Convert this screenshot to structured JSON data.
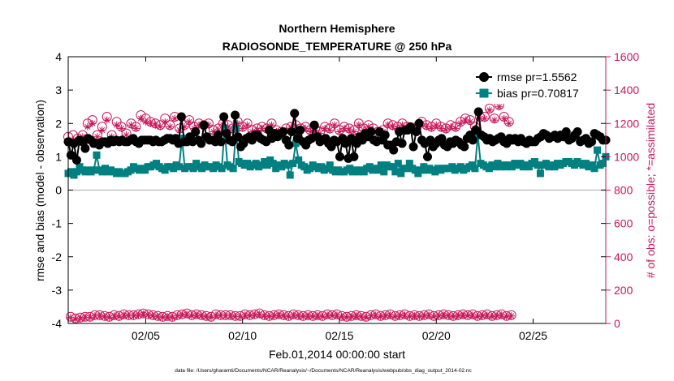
{
  "chart_data": {
    "type": "line",
    "title": "Northern Hemisphere",
    "subtitle": "RADIOSONDE_TEMPERATURE @ 250 hPa",
    "xlabel": "Feb.01,2014 00:00:00 start",
    "ylabel": "rmse and bias (model - observation)",
    "y2label": "# of obs: o=possible; *=assimilated",
    "footnote": "data file: /Users/gharamti/Documents/NCAR/Reanalysis/~/Documents/NCAR/Reanalysis/webpub/obs_diag_output_2014-02.nc",
    "x_unit": "day of February 2014 (6-hourly)",
    "xlim": [
      1.0,
      28.75
    ],
    "ylim": [
      -4,
      4
    ],
    "y2lim": [
      0,
      1600
    ],
    "x_ticks": [
      5,
      10,
      15,
      20,
      25
    ],
    "x_tick_labels": [
      "02/05",
      "02/10",
      "02/15",
      "02/20",
      "02/25"
    ],
    "y_ticks": [
      -4,
      -3,
      -2,
      -1,
      0,
      1,
      2,
      3,
      4
    ],
    "y_tick_labels": [
      "-4",
      "-3",
      "-2",
      "-1",
      "0",
      "1",
      "2",
      "3",
      "4"
    ],
    "y2_ticks": [
      0,
      200,
      400,
      600,
      800,
      1000,
      1200,
      1400,
      1600
    ],
    "y2_tick_labels": [
      "0",
      "200",
      "400",
      "600",
      "800",
      "1000",
      "1200",
      "1400",
      "1600"
    ],
    "zero_line": 0,
    "grid": false,
    "legend_position": "top-right",
    "colors": {
      "rmse": "#000000",
      "bias": "#008080",
      "obs": "#c8185a",
      "zero": "#b4b4b4"
    },
    "series": [
      {
        "name": "rmse pr=1.5562",
        "axis": "left",
        "marker": "circle",
        "color": "#000000",
        "values": [
          1.45,
          1.05,
          1.4,
          0.9,
          1.5,
          1.45,
          1.25,
          1.55,
          1.5,
          1.4,
          1.4,
          1.35,
          1.45,
          1.45,
          1.4,
          1.5,
          1.45,
          1.5,
          1.45,
          1.5,
          1.45,
          1.45,
          1.5,
          1.55,
          1.45,
          1.4,
          1.5,
          1.5,
          1.5,
          1.5,
          1.45,
          1.5,
          1.45,
          1.45,
          1.5,
          1.55,
          1.55,
          1.5,
          1.55,
          1.4,
          2.2,
          1.45,
          1.45,
          1.6,
          1.45,
          1.75,
          1.5,
          1.4,
          1.95,
          1.6,
          1.5,
          1.5,
          1.45,
          1.65,
          1.45,
          2.2,
          1.7,
          1.5,
          1.45,
          2.25,
          1.6,
          1.3,
          1.4,
          1.55,
          1.6,
          1.5,
          1.65,
          1.65,
          1.55,
          1.5,
          1.45,
          1.8,
          1.55,
          1.7,
          1.6,
          1.7,
          1.75,
          1.5,
          1.35,
          1.75,
          2.3,
          1.55,
          1.8,
          1.45,
          1.35,
          1.5,
          1.55,
          1.95,
          1.6,
          1.45,
          1.5,
          1.55,
          1.4,
          1.3,
          1.5,
          1.45,
          1.0,
          1.55,
          1.4,
          0.95,
          1.55,
          1.0,
          1.4,
          1.6,
          1.5,
          1.7,
          1.6,
          1.75,
          1.5,
          1.45,
          1.75,
          1.5,
          1.65,
          1.35,
          1.35,
          1.2,
          1.45,
          1.75,
          1.4,
          1.8,
          1.8,
          1.9,
          1.3,
          1.75,
          2.0,
          1.5,
          1.4,
          1.0,
          1.5,
          1.3,
          1.4,
          1.5,
          1.55,
          1.35,
          1.3,
          1.45,
          1.4,
          1.5,
          1.45,
          1.35,
          1.3,
          1.55,
          1.65,
          1.5,
          1.8,
          2.35,
          1.65,
          1.6,
          1.5,
          1.55,
          1.45,
          1.5,
          1.55,
          1.6,
          1.45,
          1.4,
          1.55,
          1.5,
          1.55,
          1.45,
          1.55,
          1.45,
          1.4,
          1.5,
          1.45,
          1.45,
          1.55,
          1.6,
          1.7,
          1.65,
          1.55,
          1.6,
          1.65,
          1.55,
          1.65,
          1.6,
          1.75,
          1.5,
          1.55,
          1.65,
          1.75,
          1.45,
          1.5,
          1.55,
          1.4,
          1.45,
          1.7,
          1.65,
          1.6,
          1.5,
          1.5
        ]
      },
      {
        "name": "bias pr=0.70817",
        "axis": "left",
        "marker": "square",
        "color": "#008080",
        "values": [
          0.5,
          0.55,
          0.45,
          0.55,
          0.7,
          0.6,
          0.55,
          0.6,
          0.55,
          0.6,
          1.05,
          0.6,
          0.55,
          0.65,
          0.55,
          0.6,
          0.55,
          0.5,
          0.55,
          0.5,
          0.5,
          0.55,
          0.6,
          0.7,
          0.65,
          0.6,
          0.65,
          0.6,
          0.7,
          0.7,
          0.75,
          0.8,
          0.7,
          0.65,
          0.6,
          0.7,
          0.7,
          0.65,
          0.75,
          0.7,
          1.55,
          0.65,
          0.7,
          0.7,
          0.65,
          0.8,
          0.7,
          0.65,
          0.75,
          0.7,
          0.7,
          0.65,
          0.75,
          0.7,
          0.65,
          1.85,
          0.75,
          0.7,
          0.65,
          1.85,
          0.85,
          0.8,
          0.75,
          0.8,
          0.7,
          0.75,
          0.8,
          0.7,
          0.75,
          0.85,
          0.75,
          0.9,
          0.8,
          0.65,
          0.75,
          0.7,
          0.8,
          0.75,
          0.45,
          0.8,
          1.4,
          0.9,
          0.75,
          0.7,
          0.6,
          0.65,
          0.75,
          0.7,
          0.65,
          0.7,
          0.6,
          0.65,
          0.75,
          0.6,
          0.55,
          0.6,
          0.55,
          0.55,
          0.6,
          0.65,
          0.55,
          0.6,
          0.55,
          0.6,
          0.55,
          0.65,
          0.7,
          0.6,
          0.65,
          0.6,
          0.75,
          0.55,
          0.75,
          0.7,
          0.7,
          0.55,
          0.8,
          0.5,
          0.65,
          0.65,
          0.8,
          0.65,
          0.6,
          0.5,
          0.6,
          0.7,
          0.6,
          0.65,
          0.6,
          0.55,
          0.65,
          0.6,
          0.65,
          0.65,
          0.65,
          0.7,
          0.6,
          0.65,
          0.7,
          0.6,
          0.65,
          0.7,
          0.75,
          0.65,
          1.65,
          0.8,
          0.75,
          0.7,
          0.65,
          0.75,
          0.7,
          0.8,
          0.7,
          0.75,
          0.7,
          0.75,
          0.7,
          0.8,
          0.75,
          0.8,
          0.7,
          0.75,
          0.7,
          0.8,
          0.85,
          0.75,
          0.5,
          0.75,
          0.8,
          0.7,
          0.75,
          0.7,
          0.8,
          0.75,
          0.8,
          0.85,
          0.85,
          0.8,
          0.75,
          0.85,
          0.8,
          0.75,
          0.8,
          0.7,
          0.75,
          0.65,
          1.2,
          0.75,
          0.8,
          1.0
        ]
      },
      {
        "name": "possible",
        "axis": "right",
        "marker": "circle-open",
        "color": "#c8185a",
        "values": [
          1120,
          40,
          1130,
          30,
          1110,
          35,
          1130,
          40,
          1200,
          40,
          1220,
          50,
          1130,
          50,
          1180,
          45,
          1240,
          40,
          1130,
          50,
          1210,
          45,
          1180,
          55,
          1140,
          50,
          1200,
          50,
          1180,
          55,
          1250,
          60,
          1230,
          55,
          1210,
          50,
          1200,
          45,
          1190,
          40,
          1230,
          45,
          1190,
          40,
          1240,
          50,
          1170,
          55,
          1190,
          60,
          1220,
          50,
          1180,
          55,
          1200,
          50,
          1190,
          45,
          1200,
          40,
          1160,
          55,
          1170,
          50,
          1200,
          50,
          1190,
          50,
          1170,
          45,
          1210,
          45,
          1180,
          55,
          1200,
          50,
          1160,
          55,
          1170,
          60,
          1180,
          50,
          1170,
          45,
          1200,
          50,
          1160,
          55,
          1150,
          50,
          1170,
          45,
          1180,
          55,
          1190,
          50,
          1170,
          45,
          1180,
          50,
          1160,
          45,
          1170,
          50,
          1150,
          45,
          1180,
          55,
          1170,
          50,
          1200,
          55,
          1160,
          45,
          1180,
          40,
          1170,
          45,
          1160,
          50,
          1200,
          45,
          1170,
          40,
          1190,
          50,
          1170,
          55,
          1150,
          45,
          1160,
          50,
          1200,
          55,
          1190,
          45,
          1180,
          50,
          1200,
          55,
          1180,
          45,
          1170,
          50,
          1180,
          45,
          1210,
          50,
          1190,
          55,
          1180,
          45,
          1200,
          50,
          1180,
          55,
          1170,
          50,
          1190,
          45,
          1180,
          50,
          1210,
          55,
          1230,
          50,
          1220,
          55,
          1180,
          45,
          1240,
          50,
          1240,
          55,
          1290,
          45,
          1230,
          50,
          1310,
          55,
          1240,
          45,
          1210,
          50
        ]
      },
      {
        "name": "assimilated",
        "axis": "right",
        "marker": "asterisk",
        "color": "#c8185a",
        "values": [
          1080,
          35,
          1100,
          25,
          1090,
          30,
          1120,
          35,
          1180,
          35,
          1200,
          45,
          1120,
          45,
          1160,
          40,
          1220,
          35,
          1120,
          45,
          1190,
          40,
          1170,
          50,
          1130,
          45,
          1190,
          45,
          1170,
          50,
          1230,
          55,
          1210,
          50,
          1200,
          45,
          1190,
          40,
          1180,
          35,
          1210,
          40,
          1180,
          35,
          1230,
          45,
          1160,
          50,
          1180,
          55,
          1210,
          45,
          1170,
          50,
          1190,
          45,
          1180,
          40,
          1190,
          35,
          1150,
          50,
          1160,
          45,
          1190,
          45,
          1180,
          45,
          1160,
          40,
          1200,
          40,
          1170,
          50,
          1190,
          45,
          1150,
          50,
          1160,
          55,
          1170,
          45,
          1160,
          40,
          1190,
          45,
          1150,
          50,
          1140,
          45,
          1160,
          40,
          1170,
          50,
          1180,
          45,
          1160,
          40,
          1170,
          45,
          1150,
          40,
          1160,
          45,
          1140,
          40,
          1170,
          50,
          1160,
          45,
          1190,
          50,
          1150,
          40,
          1170,
          35,
          1160,
          40,
          1150,
          45,
          1190,
          40,
          1160,
          35,
          1180,
          45,
          1160,
          50,
          1140,
          40,
          1150,
          45,
          1190,
          50,
          1180,
          40,
          1170,
          45,
          1190,
          50,
          1170,
          40,
          1160,
          45,
          1170,
          40,
          1200,
          45,
          1180,
          50,
          1170,
          40,
          1190,
          45,
          1170,
          50,
          1160,
          45,
          1180,
          40,
          1170,
          45,
          1200,
          50,
          1220,
          45,
          1210,
          50,
          1170,
          40,
          1230,
          45,
          1230,
          50,
          1280,
          40,
          1220,
          45,
          1300,
          50,
          1230,
          40,
          1200,
          45
        ]
      }
    ]
  }
}
